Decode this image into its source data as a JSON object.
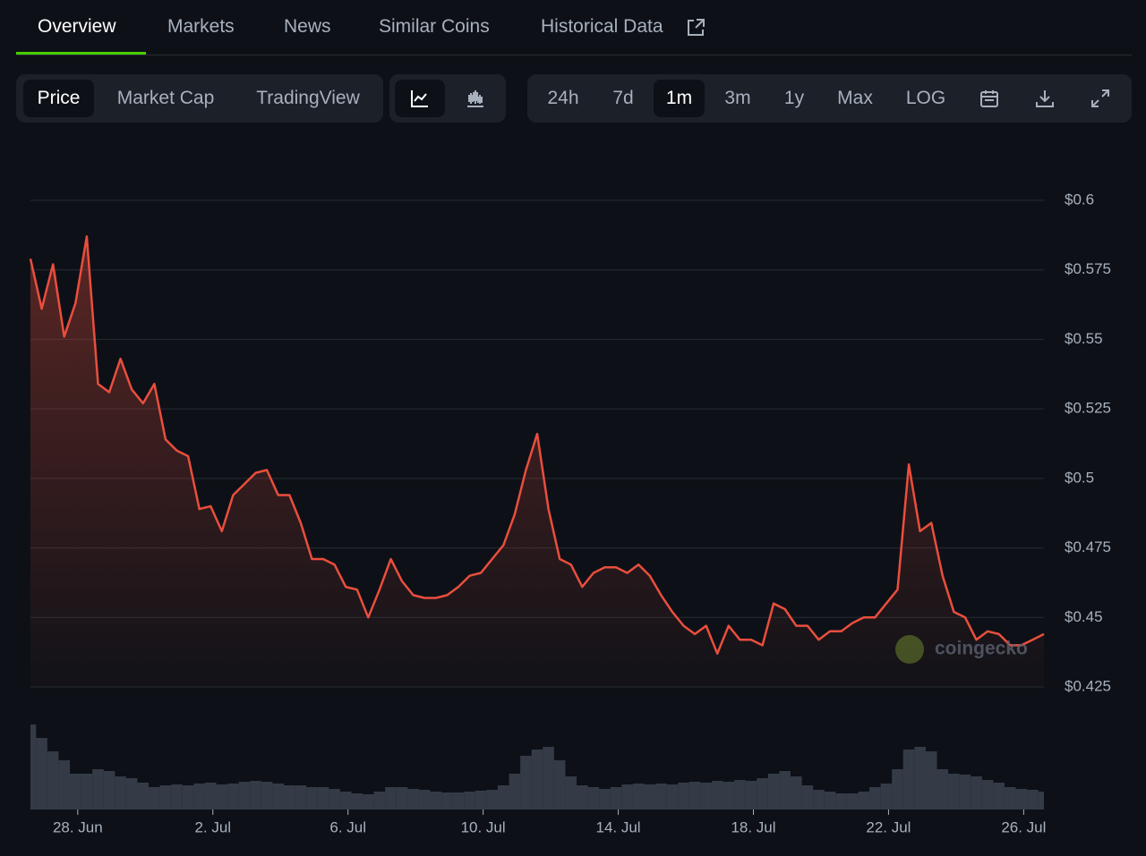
{
  "tabs": [
    "Overview",
    "Markets",
    "News",
    "Similar Coins",
    "Historical Data"
  ],
  "toolbar": {
    "views": [
      "Price",
      "Market Cap",
      "TradingView"
    ],
    "ranges": [
      "24h",
      "7d",
      "1m",
      "3m",
      "1y",
      "Max",
      "LOG"
    ]
  },
  "watermark": "coingecko",
  "chart_data": {
    "type": "line",
    "series": [
      {
        "name": "Price",
        "color": "#ea4e3d",
        "values": [
          0.579,
          0.561,
          0.577,
          0.551,
          0.563,
          0.587,
          0.534,
          0.531,
          0.543,
          0.532,
          0.527,
          0.534,
          0.514,
          0.51,
          0.508,
          0.489,
          0.49,
          0.481,
          0.494,
          0.498,
          0.502,
          0.503,
          0.494,
          0.494,
          0.484,
          0.471,
          0.471,
          0.469,
          0.461,
          0.46,
          0.45,
          0.46,
          0.471,
          0.463,
          0.458,
          0.457,
          0.457,
          0.458,
          0.461,
          0.465,
          0.466,
          0.471,
          0.476,
          0.487,
          0.503,
          0.516,
          0.489,
          0.471,
          0.469,
          0.461,
          0.466,
          0.468,
          0.468,
          0.466,
          0.469,
          0.465,
          0.458,
          0.452,
          0.447,
          0.444,
          0.447,
          0.437,
          0.447,
          0.442,
          0.442,
          0.44,
          0.455,
          0.453,
          0.447,
          0.447,
          0.442,
          0.445,
          0.445,
          0.448,
          0.45,
          0.45,
          0.455,
          0.46,
          0.505,
          0.481,
          0.484,
          0.465,
          0.452,
          0.45,
          0.442,
          0.445,
          0.444,
          0.44,
          0.44,
          0.442,
          0.444
        ]
      }
    ],
    "volume": {
      "color": "#343b47",
      "values": [
        95,
        80,
        65,
        55,
        40,
        40,
        45,
        43,
        37,
        35,
        30,
        25,
        27,
        28,
        27,
        29,
        30,
        28,
        29,
        31,
        32,
        31,
        29,
        27,
        27,
        25,
        25,
        23,
        20,
        18,
        17,
        20,
        25,
        25,
        23,
        22,
        20,
        19,
        19,
        20,
        21,
        22,
        27,
        40,
        60,
        67,
        70,
        55,
        37,
        27,
        25,
        23,
        25,
        28,
        29,
        28,
        29,
        28,
        30,
        31,
        30,
        32,
        31,
        33,
        32,
        35,
        40,
        43,
        37,
        27,
        22,
        20,
        18,
        18,
        20,
        25,
        29,
        45,
        67,
        70,
        65,
        45,
        40,
        39,
        37,
        33,
        30,
        25,
        23,
        22,
        20
      ]
    },
    "xlim": [
      0,
      90
    ],
    "xticks": [
      {
        "value": 4.2,
        "label": "28. Jun"
      },
      {
        "value": 16.2,
        "label": "2. Jul"
      },
      {
        "value": 28.2,
        "label": "6. Jul"
      },
      {
        "value": 40.2,
        "label": "10. Jul"
      },
      {
        "value": 52.2,
        "label": "14. Jul"
      },
      {
        "value": 64.2,
        "label": "18. Jul"
      },
      {
        "value": 76.2,
        "label": "22. Jul"
      },
      {
        "value": 88.2,
        "label": "26. Jul"
      }
    ],
    "ylim": [
      0.425,
      0.6
    ],
    "yticks": [
      {
        "value": 0.6,
        "label": "$0.6"
      },
      {
        "value": 0.575,
        "label": "$0.575"
      },
      {
        "value": 0.55,
        "label": "$0.55"
      },
      {
        "value": 0.525,
        "label": "$0.525"
      },
      {
        "value": 0.5,
        "label": "$0.5"
      },
      {
        "value": 0.475,
        "label": "$0.475"
      },
      {
        "value": 0.45,
        "label": "$0.45"
      },
      {
        "value": 0.425,
        "label": "$0.425"
      }
    ],
    "grid": true
  }
}
